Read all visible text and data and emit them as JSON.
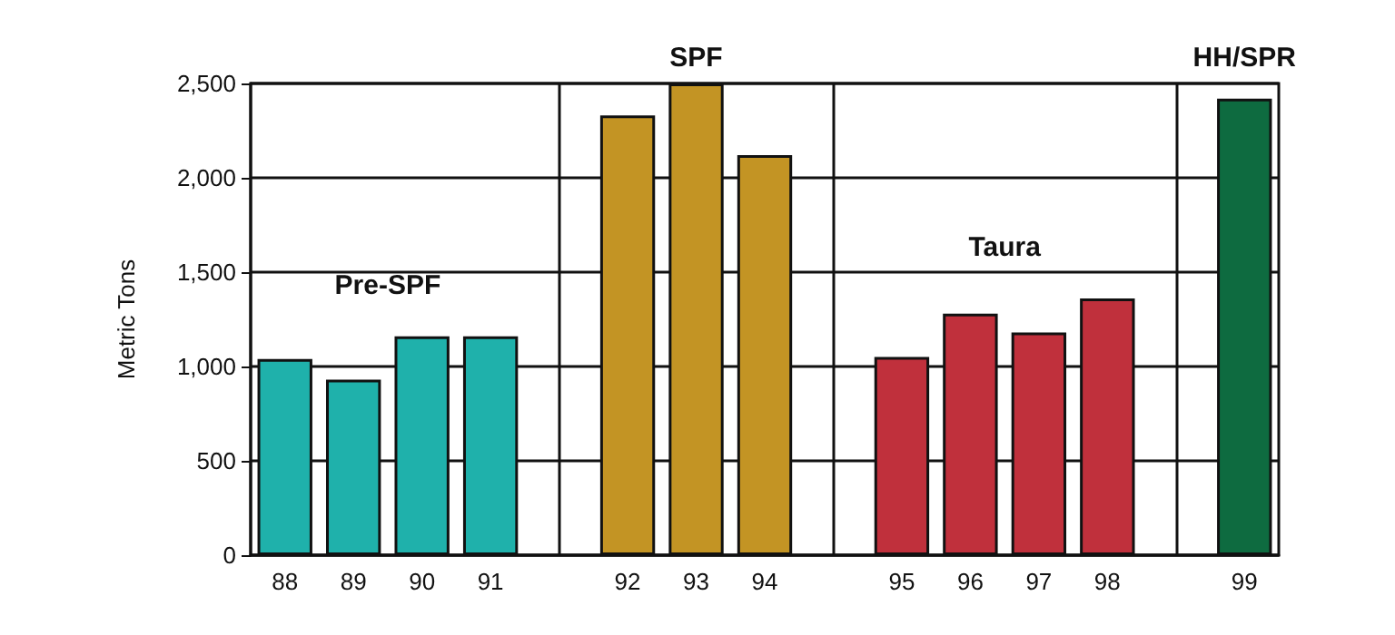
{
  "chart_data": {
    "type": "bar",
    "ylabel": "Metric Tons",
    "categories": [
      "88",
      "89",
      "90",
      "91",
      null,
      "92",
      "93",
      "94",
      null,
      "95",
      "96",
      "97",
      "98",
      null,
      "99"
    ],
    "series": [
      {
        "name": "Pre-SPF",
        "color": "#1fb1ab",
        "values": [
          1040,
          930,
          1160,
          1160,
          null,
          null,
          null,
          null,
          null,
          null,
          null,
          null,
          null,
          null,
          null
        ]
      },
      {
        "name": "SPF",
        "color": "#c39424",
        "values": [
          null,
          null,
          null,
          null,
          null,
          2330,
          2500,
          2120,
          null,
          null,
          null,
          null,
          null,
          null,
          null
        ]
      },
      {
        "name": "Taura",
        "color": "#c0303c",
        "values": [
          null,
          null,
          null,
          null,
          null,
          null,
          null,
          null,
          null,
          1050,
          1280,
          1180,
          1360,
          null,
          null
        ]
      },
      {
        "name": "HH/SPR",
        "color": "#0e6b40",
        "values": [
          null,
          null,
          null,
          null,
          null,
          null,
          null,
          null,
          null,
          null,
          null,
          null,
          null,
          null,
          2420
        ]
      }
    ],
    "ylim": [
      0,
      2500
    ],
    "yticks": [
      0,
      500,
      {
        "value": 1000,
        "label": "1,000"
      },
      {
        "value": 1500,
        "label": "1,500"
      },
      {
        "value": 2000,
        "label": "2,000"
      },
      {
        "value": 2500,
        "label": "2,500"
      }
    ],
    "grid": true,
    "legend": false
  }
}
